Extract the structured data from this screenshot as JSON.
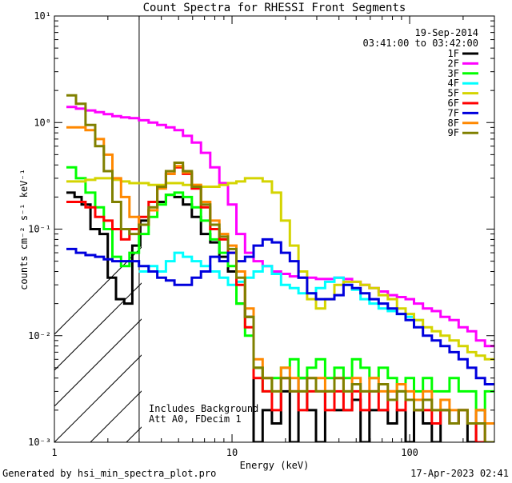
{
  "chart_data": {
    "type": "line",
    "title": "Count Spectra for RHESSI Front Segments",
    "xlabel": "Energy (keV)",
    "ylabel": "counts cm⁻² s⁻¹ keV⁻¹",
    "xscale": "log",
    "yscale": "log",
    "xlim": [
      1,
      300
    ],
    "ylim": [
      0.001,
      10
    ],
    "xticks": [
      {
        "value": 1,
        "label": "1"
      },
      {
        "value": 10,
        "label": "10"
      },
      {
        "value": 100,
        "label": "100"
      }
    ],
    "yticks": [
      {
        "value": 10,
        "label": "10¹"
      },
      {
        "value": 1,
        "label": "10⁰"
      },
      {
        "value": 0.1,
        "label": "10⁻¹"
      },
      {
        "value": 0.01,
        "label": "10⁻²"
      },
      {
        "value": 0.001,
        "label": "10⁻³"
      }
    ],
    "shaded_region": {
      "from": 1,
      "to": 3,
      "pattern": "diagonal-hatch"
    },
    "date_label": "19-Sep-2014",
    "time_range": "03:41:00 to 03:42:00",
    "annotations": [
      "Includes Background",
      "Att A0, FDecim 1"
    ],
    "legend_position": "top-right",
    "series": [
      {
        "name": "1F",
        "color": "#000000",
        "x": [
          1.25,
          1.35,
          1.5,
          1.7,
          1.9,
          2.1,
          2.35,
          2.6,
          2.9,
          3.2,
          3.6,
          4.0,
          4.5,
          5.0,
          5.6,
          6.3,
          7.1,
          8.0,
          9.0,
          10.0,
          11.2,
          12.5,
          14.0,
          15.8,
          17.8,
          20,
          22.4,
          25,
          28,
          31.5,
          35.5,
          40,
          45,
          50,
          56,
          63,
          71,
          80,
          90,
          100,
          112,
          126,
          141,
          158,
          178,
          200,
          224,
          250,
          282
        ],
        "y": [
          0.22,
          0.2,
          0.17,
          0.1,
          0.09,
          0.035,
          0.022,
          0.02,
          0.07,
          0.12,
          0.15,
          0.18,
          0.21,
          0.2,
          0.17,
          0.13,
          0.09,
          0.075,
          0.055,
          0.04,
          0.02,
          0.015,
          0.001,
          0.002,
          0.0015,
          0.003,
          0.001,
          0.004,
          0.002,
          0.001,
          0.003,
          0.002,
          0.002,
          0.0025,
          0.001,
          0.002,
          0.002,
          0.0015,
          0.002,
          0.001,
          0.002,
          0.0015,
          0.001,
          0.002,
          0.0015,
          0.002,
          0.001,
          0.002,
          0.0015
        ]
      },
      {
        "name": "2F",
        "color": "#ff00ff",
        "x": [
          1.25,
          1.4,
          1.6,
          1.8,
          2.0,
          2.25,
          2.5,
          2.8,
          3.2,
          3.6,
          4.0,
          4.5,
          5.0,
          5.6,
          6.3,
          7.1,
          8.0,
          9.0,
          10.0,
          11.2,
          12.5,
          14.0,
          15.8,
          17.8,
          20,
          22.4,
          25,
          28,
          31.5,
          35.5,
          40,
          45,
          50,
          56,
          63,
          71,
          80,
          90,
          100,
          112,
          126,
          141,
          158,
          178,
          200,
          224,
          250,
          282
        ],
        "y": [
          1.4,
          1.35,
          1.3,
          1.25,
          1.2,
          1.15,
          1.12,
          1.1,
          1.05,
          1.0,
          0.95,
          0.9,
          0.85,
          0.75,
          0.65,
          0.52,
          0.38,
          0.27,
          0.17,
          0.09,
          0.06,
          0.05,
          0.045,
          0.04,
          0.038,
          0.036,
          0.035,
          0.035,
          0.034,
          0.034,
          0.035,
          0.034,
          0.032,
          0.03,
          0.028,
          0.026,
          0.024,
          0.023,
          0.022,
          0.02,
          0.018,
          0.017,
          0.015,
          0.014,
          0.012,
          0.011,
          0.009,
          0.008
        ]
      },
      {
        "name": "3F",
        "color": "#00ff00",
        "x": [
          1.25,
          1.4,
          1.6,
          1.8,
          2.0,
          2.25,
          2.5,
          2.8,
          3.2,
          3.6,
          4.0,
          4.5,
          5.0,
          5.6,
          6.3,
          7.1,
          8.0,
          9.0,
          10.0,
          11.2,
          12.5,
          14.0,
          15.8,
          17.8,
          20,
          22.4,
          25,
          28,
          31.5,
          35.5,
          40,
          45,
          50,
          56,
          63,
          71,
          80,
          90,
          100,
          112,
          126,
          141,
          158,
          178,
          200,
          224,
          250,
          282
        ],
        "y": [
          0.38,
          0.3,
          0.22,
          0.16,
          0.1,
          0.055,
          0.045,
          0.06,
          0.09,
          0.13,
          0.17,
          0.21,
          0.22,
          0.2,
          0.16,
          0.12,
          0.08,
          0.06,
          0.045,
          0.02,
          0.01,
          0.005,
          0.003,
          0.004,
          0.005,
          0.006,
          0.004,
          0.005,
          0.006,
          0.004,
          0.005,
          0.004,
          0.006,
          0.005,
          0.004,
          0.005,
          0.004,
          0.003,
          0.004,
          0.003,
          0.004,
          0.003,
          0.003,
          0.004,
          0.003,
          0.003,
          0.002,
          0.003
        ]
      },
      {
        "name": "4F",
        "color": "#00ffff",
        "x": [
          3.2,
          3.6,
          4.0,
          4.5,
          5.0,
          5.6,
          6.3,
          7.1,
          8.0,
          9.0,
          10.0,
          11.2,
          12.5,
          14.0,
          15.8,
          17.8,
          20,
          22.4,
          25,
          28,
          31.5,
          35.5,
          40,
          45,
          50,
          56,
          63,
          71,
          80,
          90,
          100,
          112
        ],
        "y": [
          0.04,
          0.045,
          0.04,
          0.05,
          0.06,
          0.055,
          0.05,
          0.045,
          0.04,
          0.035,
          0.03,
          0.032,
          0.035,
          0.04,
          0.045,
          0.038,
          0.03,
          0.028,
          0.025,
          0.025,
          0.028,
          0.032,
          0.035,
          0.03,
          0.027,
          0.022,
          0.02,
          0.018,
          0.017,
          0.016,
          0.015,
          0.014
        ]
      },
      {
        "name": "5F",
        "color": "#d4d400",
        "x": [
          1.25,
          1.4,
          1.6,
          1.8,
          2.0,
          2.25,
          2.5,
          2.8,
          3.2,
          3.6,
          4.0,
          4.5,
          5.0,
          5.6,
          6.3,
          7.1,
          8.0,
          9.0,
          10.0,
          11.2,
          12.5,
          14.0,
          15.8,
          17.8,
          20,
          22.4,
          25,
          28,
          31.5,
          35.5,
          40,
          45,
          50,
          56,
          63,
          71,
          80,
          90,
          100,
          112,
          126,
          141,
          158,
          178,
          200,
          224,
          250,
          282
        ],
        "y": [
          0.28,
          0.28,
          0.29,
          0.3,
          0.3,
          0.29,
          0.28,
          0.27,
          0.27,
          0.26,
          0.26,
          0.27,
          0.27,
          0.26,
          0.26,
          0.25,
          0.25,
          0.26,
          0.27,
          0.28,
          0.3,
          0.3,
          0.28,
          0.22,
          0.12,
          0.07,
          0.04,
          0.022,
          0.018,
          0.022,
          0.03,
          0.032,
          0.032,
          0.03,
          0.028,
          0.024,
          0.022,
          0.018,
          0.016,
          0.014,
          0.012,
          0.011,
          0.01,
          0.009,
          0.008,
          0.007,
          0.0065,
          0.006
        ]
      },
      {
        "name": "6F",
        "color": "#ff0000",
        "x": [
          1.25,
          1.4,
          1.6,
          1.8,
          2.0,
          2.25,
          2.5,
          2.8,
          3.2,
          3.6,
          4.0,
          4.5,
          5.0,
          5.6,
          6.3,
          7.1,
          8.0,
          9.0,
          10.0,
          11.2,
          12.5,
          14.0,
          15.8,
          17.8,
          20,
          22.4,
          25,
          28,
          31.5,
          35.5,
          40,
          45,
          50,
          56,
          63,
          71,
          80,
          90,
          100,
          112,
          126,
          141,
          158,
          178,
          200,
          224,
          250,
          282
        ],
        "y": [
          0.18,
          0.18,
          0.16,
          0.13,
          0.12,
          0.1,
          0.08,
          0.1,
          0.13,
          0.18,
          0.25,
          0.33,
          0.38,
          0.33,
          0.24,
          0.16,
          0.1,
          0.08,
          0.06,
          0.03,
          0.012,
          0.004,
          0.003,
          0.002,
          0.004,
          0.003,
          0.002,
          0.003,
          0.003,
          0.002,
          0.003,
          0.002,
          0.003,
          0.002,
          0.003,
          0.002,
          0.003,
          0.002,
          0.0025,
          0.002,
          0.002,
          0.0015,
          0.002,
          0.0015,
          0.002,
          0.0015,
          0.001,
          0.0015
        ]
      },
      {
        "name": "7F",
        "color": "#0000dd",
        "x": [
          1.25,
          1.4,
          1.6,
          1.8,
          2.0,
          2.25,
          2.5,
          2.8,
          3.2,
          3.6,
          4.0,
          4.5,
          5.0,
          5.6,
          6.3,
          7.1,
          8.0,
          9.0,
          10.0,
          11.2,
          12.5,
          14.0,
          15.8,
          17.8,
          20,
          22.4,
          25,
          28,
          31.5,
          35.5,
          40,
          45,
          50,
          56,
          63,
          71,
          80,
          90,
          100,
          112,
          126,
          141,
          158,
          178,
          200,
          224,
          250,
          282
        ],
        "y": [
          0.065,
          0.06,
          0.057,
          0.055,
          0.052,
          0.05,
          0.05,
          0.05,
          0.045,
          0.04,
          0.035,
          0.033,
          0.03,
          0.03,
          0.035,
          0.04,
          0.055,
          0.05,
          0.06,
          0.05,
          0.055,
          0.07,
          0.08,
          0.075,
          0.06,
          0.05,
          0.035,
          0.025,
          0.022,
          0.022,
          0.024,
          0.03,
          0.028,
          0.025,
          0.022,
          0.02,
          0.018,
          0.016,
          0.014,
          0.012,
          0.01,
          0.009,
          0.008,
          0.007,
          0.006,
          0.005,
          0.004,
          0.0035
        ]
      },
      {
        "name": "8F",
        "color": "#ff8800",
        "x": [
          1.25,
          1.4,
          1.6,
          1.8,
          2.0,
          2.25,
          2.5,
          2.8,
          3.2,
          3.6,
          4.0,
          4.5,
          5.0,
          5.6,
          6.3,
          7.1,
          8.0,
          9.0,
          10.0,
          11.2,
          12.5,
          14.0,
          15.8,
          17.8,
          20,
          22.4,
          25,
          28,
          31.5,
          35.5,
          40,
          45,
          50,
          56,
          63,
          71,
          80,
          90,
          100,
          112,
          126,
          141,
          158,
          178,
          200,
          224,
          250,
          282
        ],
        "y": [
          0.9,
          0.9,
          0.85,
          0.7,
          0.5,
          0.3,
          0.2,
          0.13,
          0.11,
          0.15,
          0.24,
          0.33,
          0.39,
          0.34,
          0.26,
          0.18,
          0.12,
          0.09,
          0.07,
          0.04,
          0.018,
          0.006,
          0.004,
          0.003,
          0.005,
          0.004,
          0.003,
          0.004,
          0.004,
          0.003,
          0.004,
          0.003,
          0.004,
          0.003,
          0.004,
          0.003,
          0.003,
          0.0035,
          0.003,
          0.0025,
          0.003,
          0.002,
          0.0025,
          0.002,
          0.002,
          0.0015,
          0.002,
          0.0015
        ]
      },
      {
        "name": "9F",
        "color": "#808000",
        "x": [
          1.25,
          1.4,
          1.6,
          1.8,
          2.0,
          2.25,
          2.5,
          2.8,
          3.2,
          3.6,
          4.0,
          4.5,
          5.0,
          5.6,
          6.3,
          7.1,
          8.0,
          9.0,
          10.0,
          11.2,
          12.5,
          14.0,
          15.8,
          17.8,
          20,
          22.4,
          25,
          28,
          31.5,
          35.5,
          40,
          45,
          50,
          56,
          63,
          71,
          80,
          90,
          100,
          112,
          126,
          141,
          158,
          178,
          200,
          224,
          250,
          282
        ],
        "y": [
          1.8,
          1.5,
          0.95,
          0.6,
          0.35,
          0.18,
          0.1,
          0.09,
          0.11,
          0.16,
          0.25,
          0.35,
          0.42,
          0.35,
          0.25,
          0.17,
          0.11,
          0.085,
          0.065,
          0.035,
          0.015,
          0.005,
          0.004,
          0.003,
          0.004,
          0.003,
          0.003,
          0.004,
          0.003,
          0.003,
          0.004,
          0.003,
          0.0035,
          0.003,
          0.003,
          0.0035,
          0.0025,
          0.003,
          0.0025,
          0.002,
          0.0025,
          0.002,
          0.002,
          0.0015,
          0.002,
          0.0015,
          0.0015,
          0.001
        ]
      }
    ]
  },
  "footer": {
    "generated_by": "Generated by hsi_min_spectra_plot.pro",
    "timestamp": "17-Apr-2023 02:41"
  }
}
